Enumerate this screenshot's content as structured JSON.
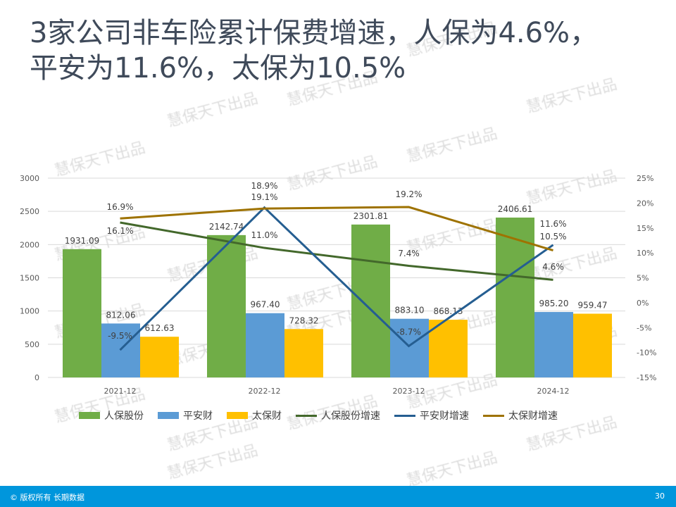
{
  "title_line1": "3家公司非车险累计保费增速，人保为4.6%，",
  "title_line2": "平安为11.6%，太保为10.5%",
  "watermark": "慧保天下出品",
  "footer": {
    "copyright": "© 版权所有 长期数据",
    "page": "30"
  },
  "chart_data": {
    "type": "bar+line",
    "categories": [
      "2021-12",
      "2022-12",
      "2023-12",
      "2024-12"
    ],
    "left_axis": {
      "range": [
        0,
        3000
      ],
      "ticks": [
        0,
        500,
        1000,
        1500,
        2000,
        2500,
        3000
      ]
    },
    "right_axis": {
      "range": [
        -15,
        25
      ],
      "ticks": [
        "-15%",
        "-10%",
        "-5%",
        "0%",
        "5%",
        "10%",
        "15%",
        "20%",
        "25%"
      ]
    },
    "grid": true,
    "legend": "bottom",
    "bar_series": [
      {
        "name": "人保股份",
        "color": "#70ad47",
        "values": [
          1931.09,
          2142.74,
          2301.81,
          2406.61
        ],
        "labels": [
          "1931.09",
          "2142.74",
          "2301.81",
          "2406.61"
        ]
      },
      {
        "name": "平安财",
        "color": "#5b9bd5",
        "values": [
          812.06,
          967.4,
          883.1,
          985.2
        ],
        "labels": [
          "812.06",
          "967.40",
          "883.10",
          "985.20"
        ]
      },
      {
        "name": "太保财",
        "color": "#ffc000",
        "values": [
          612.63,
          728.32,
          868.13,
          959.47
        ],
        "labels": [
          "612.63",
          "728.32",
          "868.13",
          "959.47"
        ]
      }
    ],
    "line_series": [
      {
        "name": "人保股份增速",
        "color": "#43682b",
        "values": [
          16.1,
          11.0,
          7.4,
          4.6
        ],
        "labels": [
          "16.1%",
          "11.0%",
          "7.4%",
          "4.6%"
        ]
      },
      {
        "name": "平安财增速",
        "color": "#255e91",
        "values": [
          -9.5,
          19.1,
          -8.7,
          11.6
        ],
        "labels": [
          "-9.5%",
          "19.1%",
          "-8.7%",
          "11.6%"
        ]
      },
      {
        "name": "太保财增速",
        "color": "#9e7200",
        "values": [
          16.9,
          18.9,
          19.2,
          10.5
        ],
        "labels": [
          "16.9%",
          "18.9%",
          "19.2%",
          "10.5%"
        ]
      }
    ]
  }
}
